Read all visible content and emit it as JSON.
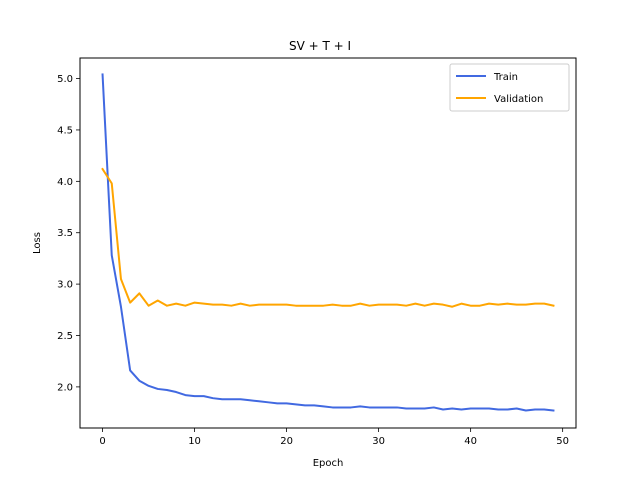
{
  "chart_data": {
    "type": "line",
    "title": "SV + T + I",
    "xlabel": "Epoch",
    "ylabel": "Loss",
    "xlim": [
      -2.45,
      51.45
    ],
    "ylim": [
      1.6,
      5.2
    ],
    "xticks": [
      0,
      10,
      20,
      30,
      40,
      50
    ],
    "yticks": [
      2.0,
      2.5,
      3.0,
      3.5,
      4.0,
      4.5,
      5.0
    ],
    "legend_position": "top-right",
    "grid": false,
    "x": [
      0,
      1,
      2,
      3,
      4,
      5,
      6,
      7,
      8,
      9,
      10,
      11,
      12,
      13,
      14,
      15,
      16,
      17,
      18,
      19,
      20,
      21,
      22,
      23,
      24,
      25,
      26,
      27,
      28,
      29,
      30,
      31,
      32,
      33,
      34,
      35,
      36,
      37,
      38,
      39,
      40,
      41,
      42,
      43,
      44,
      45,
      46,
      47,
      48,
      49
    ],
    "series": [
      {
        "name": "Train",
        "color": "#4169e1",
        "values": [
          5.04,
          3.28,
          2.78,
          2.16,
          2.06,
          2.01,
          1.98,
          1.97,
          1.95,
          1.92,
          1.91,
          1.91,
          1.89,
          1.88,
          1.88,
          1.88,
          1.87,
          1.86,
          1.85,
          1.84,
          1.84,
          1.83,
          1.82,
          1.82,
          1.81,
          1.8,
          1.8,
          1.8,
          1.81,
          1.8,
          1.8,
          1.8,
          1.8,
          1.79,
          1.79,
          1.79,
          1.8,
          1.78,
          1.79,
          1.78,
          1.79,
          1.79,
          1.79,
          1.78,
          1.78,
          1.79,
          1.77,
          1.78,
          1.78,
          1.77
        ]
      },
      {
        "name": "Validation",
        "color": "#ffa500",
        "values": [
          4.12,
          3.98,
          3.05,
          2.82,
          2.91,
          2.79,
          2.84,
          2.79,
          2.81,
          2.79,
          2.82,
          2.81,
          2.8,
          2.8,
          2.79,
          2.81,
          2.79,
          2.8,
          2.8,
          2.8,
          2.8,
          2.79,
          2.79,
          2.79,
          2.79,
          2.8,
          2.79,
          2.79,
          2.81,
          2.79,
          2.8,
          2.8,
          2.8,
          2.79,
          2.81,
          2.79,
          2.81,
          2.8,
          2.78,
          2.81,
          2.79,
          2.79,
          2.81,
          2.8,
          2.81,
          2.8,
          2.8,
          2.81,
          2.81,
          2.79
        ]
      }
    ]
  }
}
